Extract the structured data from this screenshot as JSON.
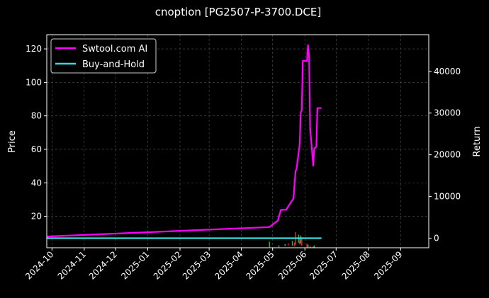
{
  "chart_data": {
    "type": "line",
    "title": "cnoption [PG2507-P-3700.DCE]",
    "xlabel": "",
    "ylabel": "Price",
    "y2label": "Return",
    "x_range": [
      "2024-09-26",
      "2025-09-28"
    ],
    "ylim": [
      1.2,
      128.5
    ],
    "y2lim": [
      -2300,
      48800
    ],
    "grid": true,
    "legend_position": "top-left",
    "x_ticks": [
      "2024-10",
      "2024-11",
      "2024-12",
      "2025-01",
      "2025-02",
      "2025-03",
      "2025-04",
      "2025-05",
      "2025-06",
      "2025-07",
      "2025-08",
      "2025-09"
    ],
    "y_ticks": [
      20,
      40,
      60,
      80,
      100,
      120
    ],
    "y2_ticks": [
      0,
      10000,
      20000,
      30000,
      40000
    ],
    "series": [
      {
        "name": "Swtool.com AI",
        "axis": "right",
        "color": "#ff00ff",
        "points": [
          [
            "2024-09-26",
            400
          ],
          [
            "2025-04-28",
            2650
          ],
          [
            "2025-05-06",
            4200
          ],
          [
            "2025-05-09",
            6800
          ],
          [
            "2025-05-14",
            6800
          ],
          [
            "2025-05-16",
            7600
          ],
          [
            "2025-05-21",
            9500
          ],
          [
            "2025-05-23",
            16000
          ],
          [
            "2025-05-24",
            16600
          ],
          [
            "2025-05-27",
            22500
          ],
          [
            "2025-05-28",
            30200
          ],
          [
            "2025-05-29",
            30600
          ],
          [
            "2025-05-30",
            42500
          ],
          [
            "2025-06-03",
            42500
          ],
          [
            "2025-06-04",
            46300
          ],
          [
            "2025-06-05",
            43800
          ],
          [
            "2025-06-06",
            26500
          ],
          [
            "2025-06-09",
            17400
          ],
          [
            "2025-06-10",
            21500
          ],
          [
            "2025-06-12",
            21900
          ],
          [
            "2025-06-13",
            31200
          ],
          [
            "2025-06-17",
            31200
          ]
        ]
      },
      {
        "name": "Buy-and-Hold",
        "axis": "right",
        "color": "#33dddd",
        "points": [
          [
            "2024-09-26",
            0
          ],
          [
            "2025-06-17",
            0
          ]
        ]
      }
    ],
    "price_candles": [
      {
        "date": "2025-04-28",
        "low": 1.5,
        "high": 4.8,
        "color": "#22aa44"
      },
      {
        "date": "2025-05-07",
        "low": 1.5,
        "high": 2.6,
        "color": "#22aa44"
      },
      {
        "date": "2025-05-13",
        "low": 2.3,
        "high": 3.4,
        "color": "#22aa44"
      },
      {
        "date": "2025-05-16",
        "low": 2.6,
        "high": 3.8,
        "color": "#dd2222"
      },
      {
        "date": "2025-05-20",
        "low": 2.3,
        "high": 5.2,
        "color": "#22aa44"
      },
      {
        "date": "2025-05-22",
        "low": 2.0,
        "high": 4.4,
        "color": "#dd2222"
      },
      {
        "date": "2025-05-23",
        "low": 2.8,
        "high": 10.5,
        "color": "#dd2222"
      },
      {
        "date": "2025-05-26",
        "low": 4.1,
        "high": 9.0,
        "color": "#22aa44"
      },
      {
        "date": "2025-05-27",
        "low": 3.2,
        "high": 6.8,
        "color": "#dd2222"
      },
      {
        "date": "2025-05-28",
        "low": 3.8,
        "high": 8.6,
        "color": "#22aa44"
      },
      {
        "date": "2025-05-29",
        "low": 2.4,
        "high": 7.4,
        "color": "#dd2222"
      },
      {
        "date": "2025-06-03",
        "low": 1.5,
        "high": 3.6,
        "color": "#dd2222"
      },
      {
        "date": "2025-06-04",
        "low": 1.4,
        "high": 3.0,
        "color": "#22aa44"
      },
      {
        "date": "2025-06-06",
        "low": 1.4,
        "high": 2.4,
        "color": "#dd2222"
      },
      {
        "date": "2025-06-09",
        "low": 1.3,
        "high": 1.9,
        "color": "#22aa44"
      },
      {
        "date": "2025-06-10",
        "low": 1.3,
        "high": 2.6,
        "color": "#22aa44"
      }
    ]
  }
}
